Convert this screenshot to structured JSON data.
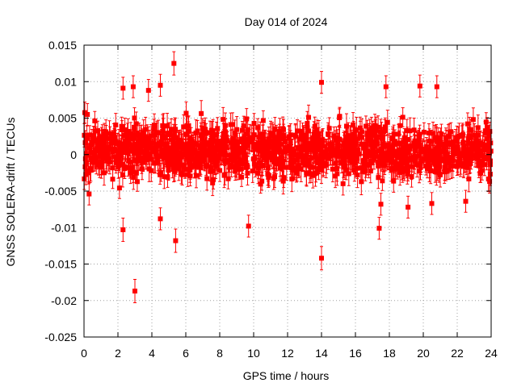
{
  "chart_data": {
    "type": "scatter",
    "title": "Day 014 of 2024",
    "xlabel": "GPS time / hours",
    "ylabel": "GNSS SOLERA-drift / TECUs",
    "xlim": [
      0,
      24
    ],
    "ylim": [
      -0.025,
      0.015
    ],
    "x_ticks": [
      0,
      2,
      4,
      6,
      8,
      10,
      12,
      14,
      16,
      18,
      20,
      22,
      24
    ],
    "x_tick_labels": [
      "0",
      "2",
      "4",
      "6",
      "8",
      "10",
      "12",
      "14",
      "16",
      "18",
      "20",
      "22",
      "24"
    ],
    "y_ticks": [
      -0.025,
      -0.02,
      -0.015,
      -0.01,
      -0.005,
      0,
      0.005,
      0.01,
      0.015
    ],
    "y_tick_labels": [
      "-0.025",
      "-0.02",
      "-0.015",
      "-0.01",
      "-0.005",
      "0",
      "0.005",
      "0.01",
      "0.015"
    ],
    "grid": true,
    "marker": "filled-square",
    "error_bars": true,
    "series_color": "#ff0000",
    "cloud": {
      "x_range": [
        0,
        24
      ],
      "y_range": [
        -0.005,
        0.006
      ],
      "typical_error": 0.0015,
      "point_count": 1400
    },
    "points": [
      {
        "x": 2.3,
        "y": 0.0091,
        "err": 0.0015
      },
      {
        "x": 2.9,
        "y": 0.0093,
        "err": 0.0015
      },
      {
        "x": 3.8,
        "y": 0.0088,
        "err": 0.0015
      },
      {
        "x": 4.5,
        "y": 0.0095,
        "err": 0.0015
      },
      {
        "x": 5.3,
        "y": 0.0125,
        "err": 0.0016
      },
      {
        "x": 14.0,
        "y": 0.0099,
        "err": 0.0015
      },
      {
        "x": 17.8,
        "y": 0.0093,
        "err": 0.0015
      },
      {
        "x": 19.8,
        "y": 0.0094,
        "err": 0.0015
      },
      {
        "x": 20.8,
        "y": 0.0093,
        "err": 0.0015
      },
      {
        "x": 2.3,
        "y": -0.0103,
        "err": 0.0016
      },
      {
        "x": 3.0,
        "y": -0.0187,
        "err": 0.0016
      },
      {
        "x": 4.5,
        "y": -0.0088,
        "err": 0.0015
      },
      {
        "x": 5.4,
        "y": -0.0118,
        "err": 0.0016
      },
      {
        "x": 9.7,
        "y": -0.0098,
        "err": 0.0015
      },
      {
        "x": 14.0,
        "y": -0.0142,
        "err": 0.0016
      },
      {
        "x": 17.4,
        "y": -0.0101,
        "err": 0.0015
      },
      {
        "x": 17.5,
        "y": -0.0068,
        "err": 0.0015
      },
      {
        "x": 19.1,
        "y": -0.0072,
        "err": 0.0015
      },
      {
        "x": 20.5,
        "y": -0.0067,
        "err": 0.0015
      },
      {
        "x": 22.5,
        "y": -0.0064,
        "err": 0.0015
      },
      {
        "x": 0.2,
        "y": 0.0055,
        "err": 0.0015
      },
      {
        "x": 0.3,
        "y": -0.0054,
        "err": 0.0015
      }
    ]
  }
}
